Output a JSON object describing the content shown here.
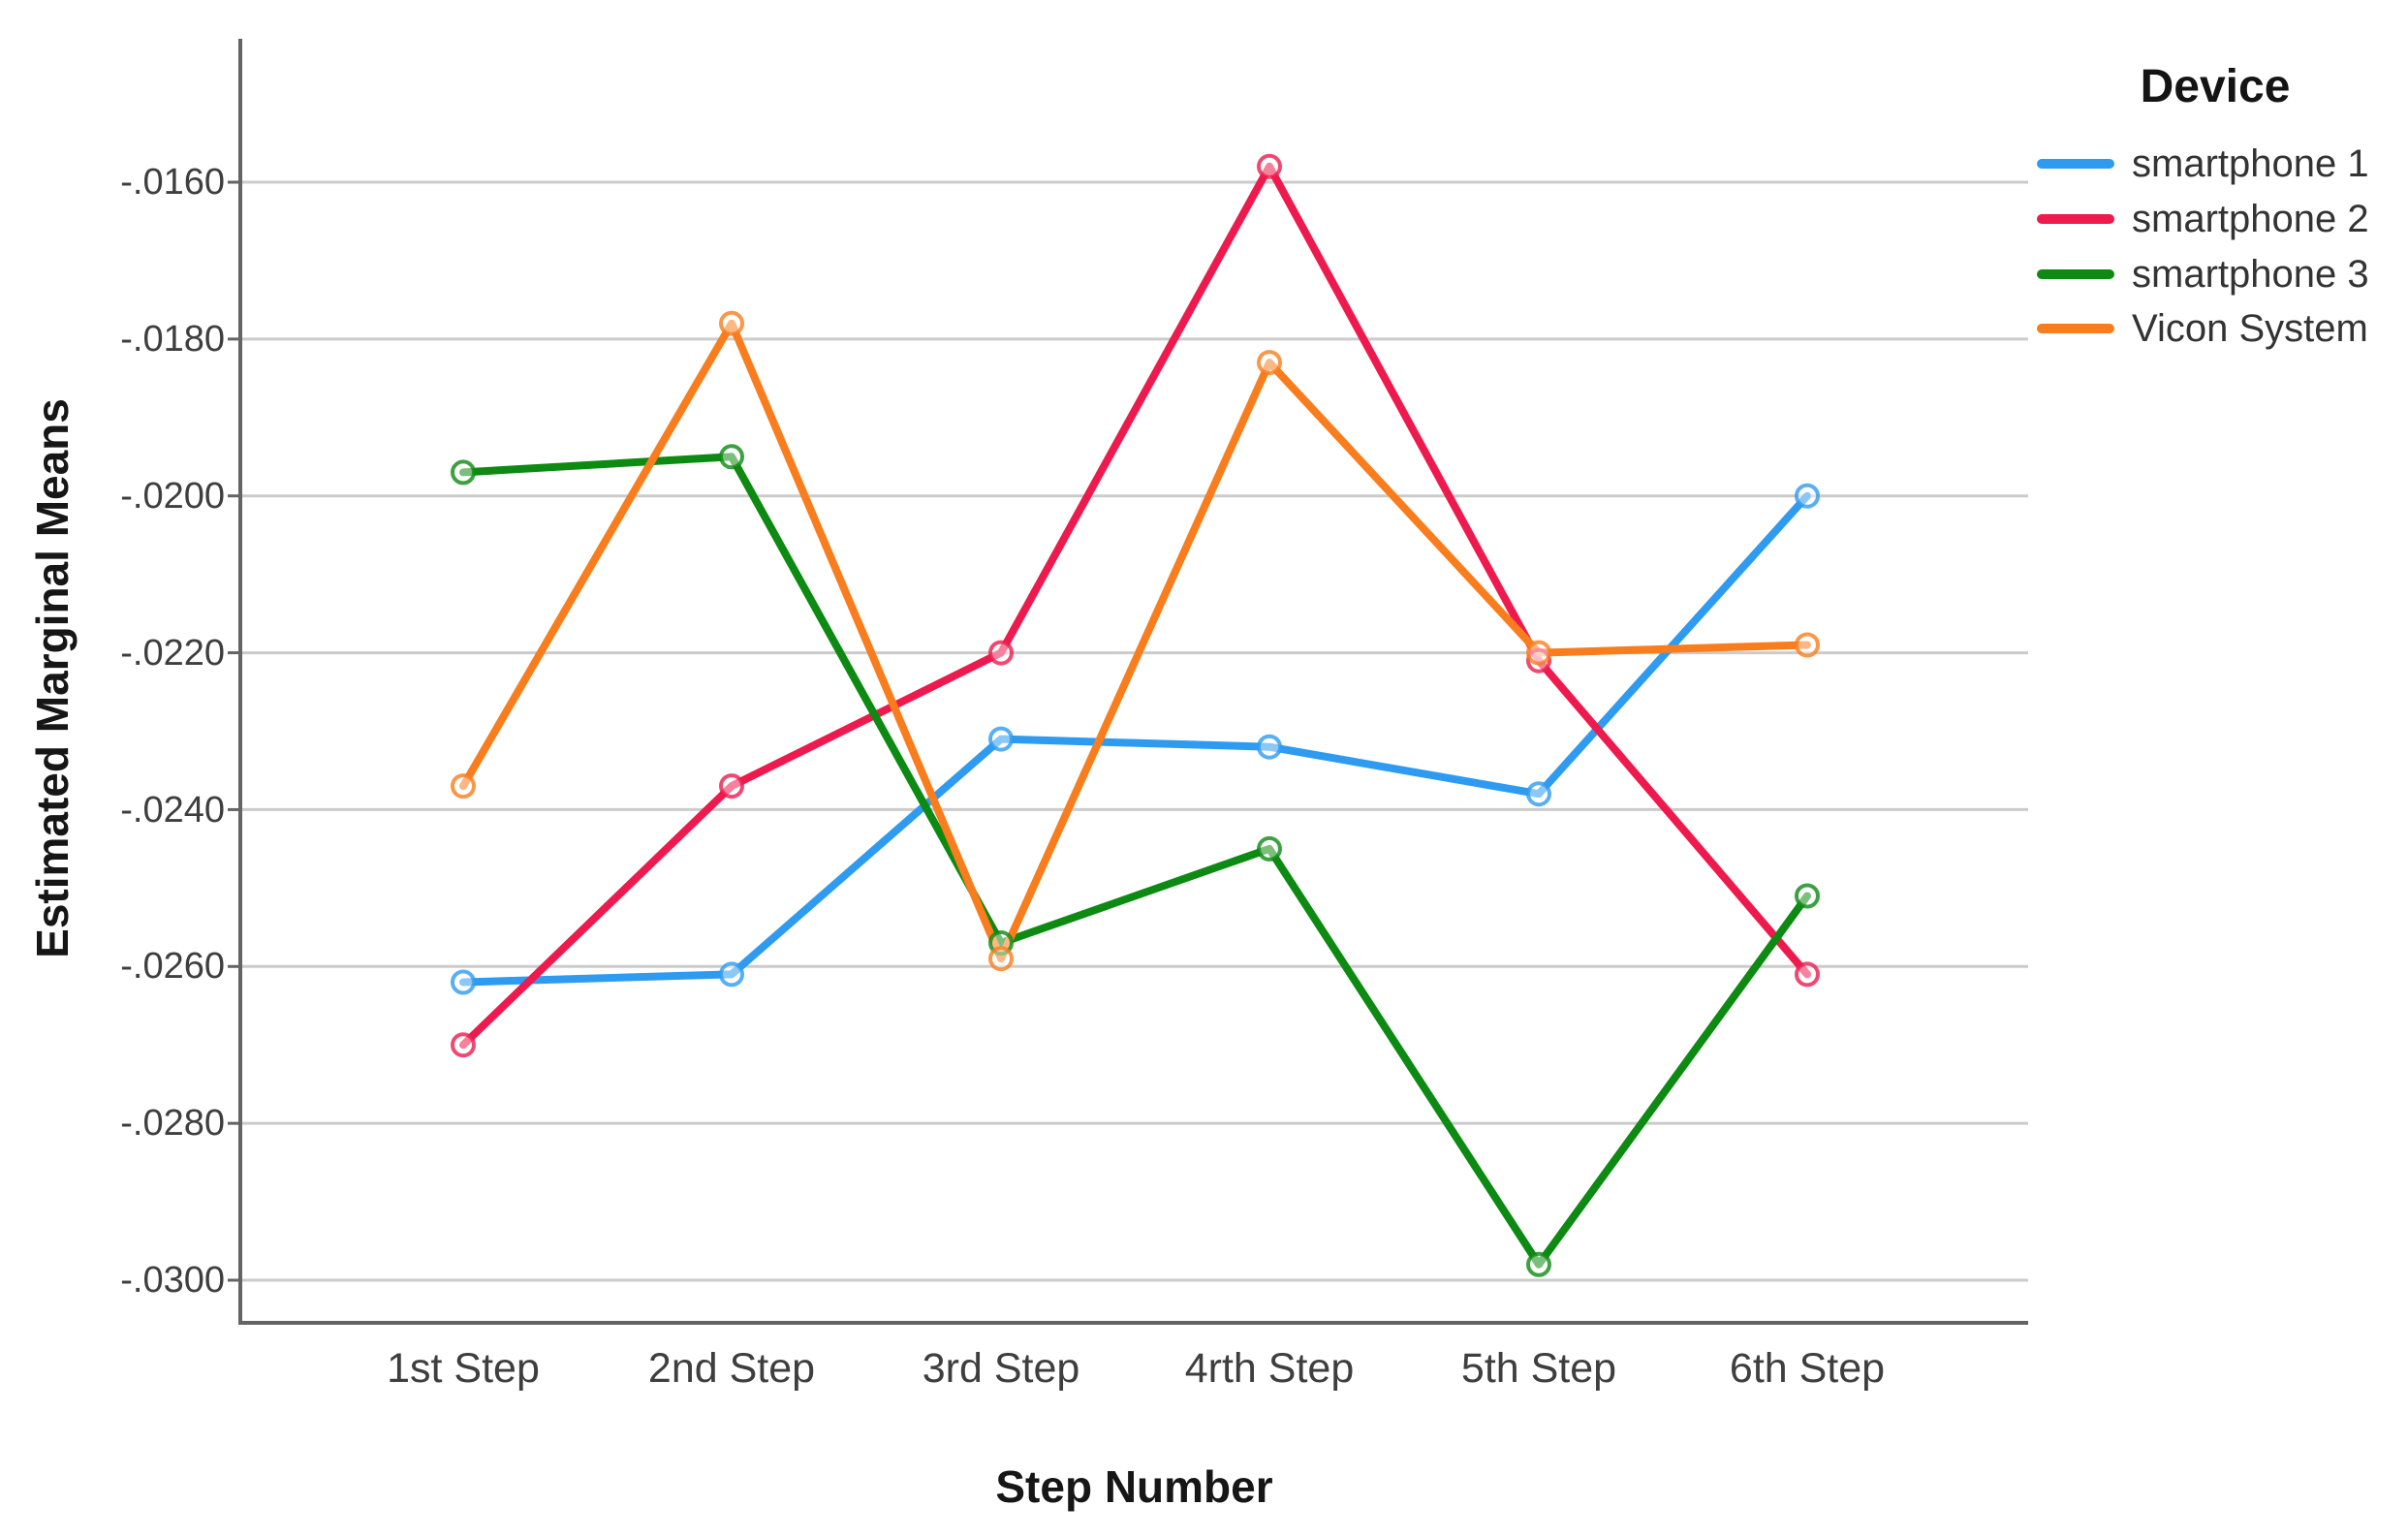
{
  "colors": {
    "background": "#ffffff",
    "grid": "#cbcbcb",
    "axis": "#646464",
    "tick_text": "#3e3e3e",
    "title_text": "#161616"
  },
  "chart_data": {
    "type": "line",
    "title": "",
    "xlabel": "Step Number",
    "ylabel": "Estimated Marginal Means",
    "legend_title": "Device",
    "legend_position": "right",
    "grid": true,
    "marker": "open-circle",
    "categories": [
      "1st Step",
      "2nd Step",
      "3rd Step",
      "4rth Step",
      "5th Step",
      "6th Step"
    ],
    "y_tick_labels": [
      "-.0160",
      "-.0180",
      "-.0200",
      "-.0220",
      "-.0240",
      "-.0260",
      "-.0280",
      "-.0300"
    ],
    "y_tick_values": [
      -0.016,
      -0.018,
      -0.02,
      -0.022,
      -0.024,
      -0.026,
      -0.028,
      -0.03
    ],
    "ylim": [
      -0.0306,
      -0.0141
    ],
    "series": [
      {
        "name": "smartphone 1",
        "color": "#2e9bf0",
        "values": [
          -0.0262,
          -0.0261,
          -0.0231,
          -0.0232,
          -0.0238,
          -0.02
        ]
      },
      {
        "name": "smartphone 2",
        "color": "#ee1a4d",
        "values": [
          -0.027,
          -0.0237,
          -0.022,
          -0.0158,
          -0.0221,
          -0.0261
        ]
      },
      {
        "name": "smartphone 3",
        "color": "#0d8a11",
        "values": [
          -0.0197,
          -0.0195,
          -0.0257,
          -0.0245,
          -0.0298,
          -0.0251
        ]
      },
      {
        "name": "Vicon System",
        "color": "#f97d1c",
        "values": [
          -0.0237,
          -0.0178,
          -0.0259,
          -0.0183,
          -0.022,
          -0.0219
        ]
      }
    ]
  }
}
